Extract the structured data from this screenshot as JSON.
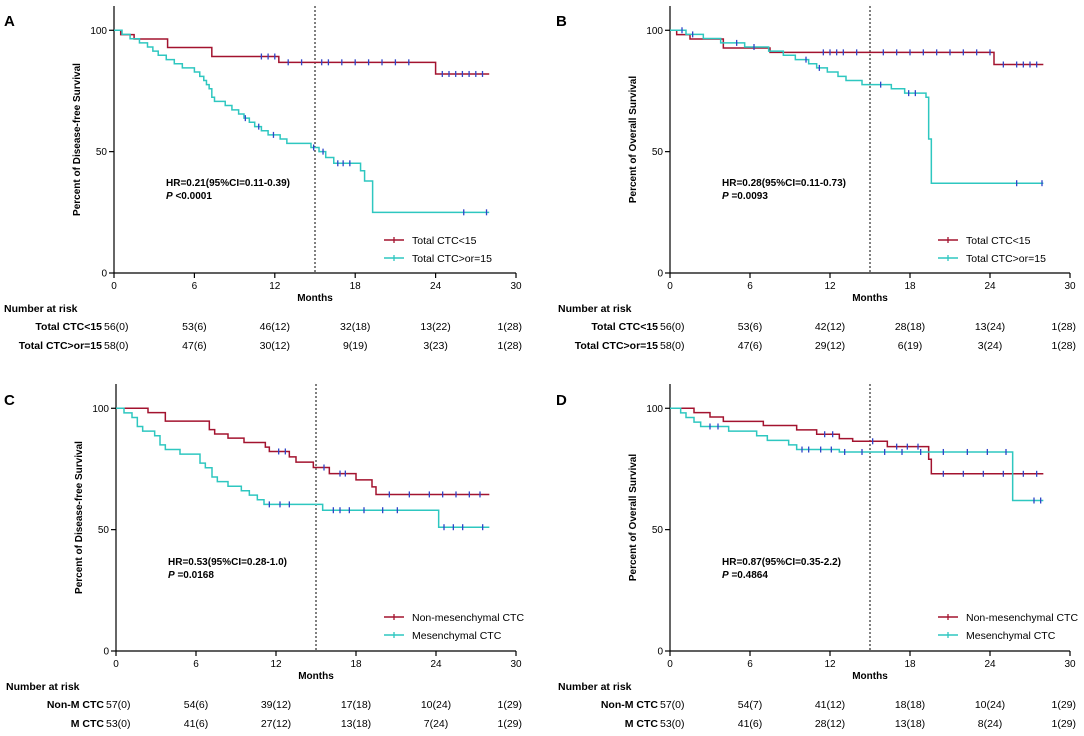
{
  "colors": {
    "group1": "#a3132f",
    "group2": "#2ec7c0",
    "censor": "#2f44c8",
    "axis": "#000000"
  },
  "chart_data": [
    {
      "type": "line",
      "panel": "A",
      "xlabel": "Months",
      "ylabel": "Percent of Disease-free Survival",
      "xlim": [
        0,
        30
      ],
      "ylim": [
        0,
        110
      ],
      "xticks": [
        0,
        6,
        12,
        18,
        24,
        30
      ],
      "yticks": [
        0,
        50,
        100
      ],
      "vline": 15,
      "stats": {
        "hr": "HR=0.21(95%CI=0.11-0.39)",
        "p_label": "P",
        "p_value": " <0.0001"
      },
      "legend_position": "bottom-right",
      "series": [
        {
          "name": "Total CTC<15",
          "color_key": "group1",
          "steps": [
            [
              0,
              100
            ],
            [
              0.5,
              98.2
            ],
            [
              1.5,
              96.4
            ],
            [
              4,
              92.9
            ],
            [
              7.3,
              89.2
            ],
            [
              12.3,
              86.8
            ],
            [
              24,
              82
            ],
            [
              28,
              82
            ]
          ],
          "censors": [
            11,
            11.5,
            12,
            13,
            14,
            15.5,
            16,
            17,
            18,
            19,
            20,
            21,
            22,
            24.5,
            25,
            25.5,
            26,
            26.5,
            27,
            27.5
          ]
        },
        {
          "name": "Total CTC>or=15",
          "color_key": "group2",
          "steps": [
            [
              0,
              100
            ],
            [
              0.6,
              98.3
            ],
            [
              1.2,
              96.5
            ],
            [
              1.9,
              94.8
            ],
            [
              2.5,
              93.1
            ],
            [
              2.9,
              91.4
            ],
            [
              3.3,
              89.7
            ],
            [
              3.9,
              87.9
            ],
            [
              4.5,
              86.2
            ],
            [
              5.1,
              84.5
            ],
            [
              6.0,
              82.8
            ],
            [
              6.4,
              81.0
            ],
            [
              6.7,
              79.3
            ],
            [
              6.9,
              77.6
            ],
            [
              7.1,
              75.9
            ],
            [
              7.3,
              72.4
            ],
            [
              7.5,
              70.7
            ],
            [
              8.3,
              69.0
            ],
            [
              8.8,
              67.2
            ],
            [
              9.3,
              65.5
            ],
            [
              9.7,
              63.8
            ],
            [
              10.1,
              62.1
            ],
            [
              10.5,
              60.3
            ],
            [
              11.0,
              58.6
            ],
            [
              11.5,
              56.9
            ],
            [
              12.4,
              55.2
            ],
            [
              12.9,
              53.4
            ],
            [
              14.7,
              51.7
            ],
            [
              15.3,
              50.0
            ],
            [
              15.8,
              47.6
            ],
            [
              16.4,
              45.2
            ],
            [
              18.4,
              42.1
            ],
            [
              18.7,
              37.9
            ],
            [
              19.3,
              25.0
            ],
            [
              28,
              25.0
            ]
          ],
          "censors": [
            9.8,
            10.8,
            11.9,
            14.9,
            15.6,
            16.7,
            17.1,
            17.6,
            26.1,
            27.8
          ]
        }
      ],
      "risk_table": {
        "title": "Number at risk",
        "rows": [
          {
            "label": "Total CTC<15",
            "values": [
              "56(0)",
              "53(6)",
              "46(12)",
              "32(18)",
              "13(22)",
              "1(28)"
            ]
          },
          {
            "label": "Total CTC>or=15",
            "values": [
              "58(0)",
              "47(6)",
              "30(12)",
              "9(19)",
              "3(23)",
              "1(28)"
            ]
          }
        ]
      }
    },
    {
      "type": "line",
      "panel": "B",
      "xlabel": "Months",
      "ylabel": "Percent of Overall Survival",
      "xlim": [
        0,
        30
      ],
      "ylim": [
        0,
        110
      ],
      "xticks": [
        0,
        6,
        12,
        18,
        24,
        30
      ],
      "yticks": [
        0,
        50,
        100
      ],
      "vline": 15,
      "stats": {
        "hr": "HR=0.28(95%CI=0.11-0.73)",
        "p_label": "P",
        "p_value": " =0.0093"
      },
      "legend_position": "bottom-right",
      "series": [
        {
          "name": "Total CTC<15",
          "color_key": "group1",
          "steps": [
            [
              0,
              100
            ],
            [
              0.5,
              98.2
            ],
            [
              1.5,
              96.4
            ],
            [
              4,
              92.7
            ],
            [
              7.5,
              90.9
            ],
            [
              24.3,
              85.9
            ],
            [
              28,
              85.9
            ]
          ],
          "censors": [
            11.5,
            12,
            12.5,
            13,
            14,
            16,
            17,
            18,
            19,
            20,
            21,
            22,
            23,
            24,
            25,
            26,
            26.5,
            27,
            27.5
          ]
        },
        {
          "name": "Total CTC>or=15",
          "color_key": "group2",
          "steps": [
            [
              0,
              100
            ],
            [
              1.2,
              98.3
            ],
            [
              2.5,
              96.6
            ],
            [
              3.8,
              94.8
            ],
            [
              5.6,
              93.1
            ],
            [
              7.4,
              91.4
            ],
            [
              8.5,
              89.7
            ],
            [
              9.4,
              87.9
            ],
            [
              10.4,
              86.2
            ],
            [
              11.0,
              84.5
            ],
            [
              11.8,
              82.8
            ],
            [
              12.6,
              81.0
            ],
            [
              13.2,
              79.3
            ],
            [
              14.4,
              77.6
            ],
            [
              16.6,
              75.9
            ],
            [
              17.6,
              74.1
            ],
            [
              19.2,
              72.4
            ],
            [
              19.4,
              55.2
            ],
            [
              19.6,
              37.0
            ],
            [
              28,
              37.0
            ]
          ],
          "censors": [
            0.9,
            1.7,
            5.0,
            6.3,
            10.2,
            11.2,
            15.8,
            17.9,
            18.4,
            26.0,
            27.9
          ]
        }
      ],
      "risk_table": {
        "title": "Number at risk",
        "rows": [
          {
            "label": "Total CTC<15",
            "values": [
              "56(0)",
              "53(6)",
              "42(12)",
              "28(18)",
              "13(24)",
              "1(28)"
            ]
          },
          {
            "label": "Total CTC>or=15",
            "values": [
              "58(0)",
              "47(6)",
              "29(12)",
              "6(19)",
              "3(24)",
              "1(28)"
            ]
          }
        ]
      }
    },
    {
      "type": "line",
      "panel": "C",
      "xlabel": "Months",
      "ylabel": "Percent of Disease-free Survival",
      "xlim": [
        0,
        30
      ],
      "ylim": [
        0,
        110
      ],
      "xticks": [
        0,
        6,
        12,
        18,
        24,
        30
      ],
      "yticks": [
        0,
        50,
        100
      ],
      "vline": 15,
      "stats": {
        "hr": "HR=0.53(95%CI=0.28-1.0)",
        "p_label": "P",
        "p_value": " =0.0168"
      },
      "legend_position": "bottom-right",
      "series": [
        {
          "name": "Non-mesenchymal CTC",
          "color_key": "group1",
          "steps": [
            [
              0,
              100
            ],
            [
              2.4,
              98.2
            ],
            [
              3.7,
              94.7
            ],
            [
              7.0,
              91.2
            ],
            [
              7.4,
              89.4
            ],
            [
              8.4,
              87.7
            ],
            [
              9.6,
              85.9
            ],
            [
              11.2,
              84.0
            ],
            [
              11.5,
              82.2
            ],
            [
              13.0,
              80.0
            ],
            [
              13.5,
              77.8
            ],
            [
              14.8,
              75.6
            ],
            [
              16.0,
              73.1
            ],
            [
              18.0,
              70.5
            ],
            [
              19.2,
              67.6
            ],
            [
              19.5,
              64.5
            ],
            [
              28,
              64.5
            ]
          ],
          "censors": [
            12.2,
            12.7,
            15.6,
            16.8,
            17.2,
            20.5,
            22,
            23.5,
            24.5,
            25.5,
            26.5,
            27.3
          ]
        },
        {
          "name": "Mesenchymal CTC",
          "color_key": "group2",
          "steps": [
            [
              0,
              100
            ],
            [
              0.6,
              98.1
            ],
            [
              1.2,
              96.2
            ],
            [
              1.6,
              92.5
            ],
            [
              2.0,
              90.6
            ],
            [
              2.9,
              88.7
            ],
            [
              3.3,
              84.9
            ],
            [
              3.7,
              83.0
            ],
            [
              4.8,
              81.1
            ],
            [
              6.3,
              77.4
            ],
            [
              6.7,
              75.5
            ],
            [
              7.2,
              71.7
            ],
            [
              7.6,
              69.8
            ],
            [
              8.4,
              67.9
            ],
            [
              9.4,
              66.0
            ],
            [
              10.0,
              64.2
            ],
            [
              10.6,
              62.3
            ],
            [
              11.1,
              60.4
            ],
            [
              15.5,
              58.0
            ],
            [
              24.2,
              51.0
            ],
            [
              28,
              51.0
            ]
          ],
          "censors": [
            11.5,
            12.3,
            13,
            16.3,
            16.8,
            17.5,
            18.6,
            20,
            21.1,
            24.6,
            25.3,
            26,
            27.5
          ]
        }
      ],
      "risk_table": {
        "title": "Number at risk",
        "rows": [
          {
            "label": "Non-M CTC",
            "values": [
              "57(0)",
              "54(6)",
              "39(12)",
              "17(18)",
              "10(24)",
              "1(29)"
            ]
          },
          {
            "label": "M CTC",
            "values": [
              "53(0)",
              "41(6)",
              "27(12)",
              "13(18)",
              "7(24)",
              "1(29)"
            ]
          }
        ]
      }
    },
    {
      "type": "line",
      "panel": "D",
      "xlabel": "Months",
      "ylabel": "Percent of Overall Survival",
      "xlim": [
        0,
        30
      ],
      "ylim": [
        0,
        110
      ],
      "xticks": [
        0,
        6,
        12,
        18,
        24,
        30
      ],
      "yticks": [
        0,
        50,
        100
      ],
      "vline": 15,
      "stats": {
        "hr": "HR=0.87(95%CI=0.35-2.2)",
        "p_label": "P",
        "p_value": " =0.4864"
      },
      "legend_position": "bottom-right",
      "series": [
        {
          "name": "Non-mesenchymal CTC",
          "color_key": "group1",
          "steps": [
            [
              0,
              100
            ],
            [
              1.8,
              98.2
            ],
            [
              3.0,
              96.4
            ],
            [
              4.0,
              94.6
            ],
            [
              7.0,
              92.9
            ],
            [
              9.5,
              91.1
            ],
            [
              11.0,
              89.3
            ],
            [
              12.7,
              87.5
            ],
            [
              13.7,
              86.4
            ],
            [
              16.3,
              84.2
            ],
            [
              19.4,
              79.0
            ],
            [
              19.6,
              73.0
            ],
            [
              28,
              73.0
            ]
          ],
          "censors": [
            11.6,
            12.2,
            15.2,
            17.0,
            17.8,
            18.6,
            20.5,
            22,
            23.5,
            25,
            26.5,
            27.5
          ]
        },
        {
          "name": "Mesenchymal CTC",
          "color_key": "group2",
          "steps": [
            [
              0,
              100
            ],
            [
              0.8,
              98.1
            ],
            [
              1.2,
              96.2
            ],
            [
              1.8,
              94.3
            ],
            [
              2.3,
              92.5
            ],
            [
              4.4,
              90.6
            ],
            [
              6.5,
              88.7
            ],
            [
              7.3,
              86.8
            ],
            [
              8.9,
              84.9
            ],
            [
              9.5,
              83.0
            ],
            [
              12.7,
              82.0
            ],
            [
              25.7,
              62.0
            ],
            [
              28,
              62.0
            ]
          ],
          "censors": [
            3.0,
            3.6,
            9.9,
            10.4,
            11.3,
            12.1,
            13.1,
            14.4,
            16.1,
            17.4,
            18.8,
            20.5,
            22.3,
            23.8,
            25.2,
            27.3,
            27.8
          ]
        }
      ],
      "risk_table": {
        "title": "Number at risk",
        "rows": [
          {
            "label": "Non-M CTC",
            "values": [
              "57(0)",
              "54(7)",
              "41(12)",
              "18(18)",
              "10(24)",
              "1(29)"
            ]
          },
          {
            "label": "M CTC",
            "values": [
              "53(0)",
              "41(6)",
              "28(12)",
              "13(18)",
              "8(24)",
              "1(29)"
            ]
          }
        ]
      }
    }
  ]
}
